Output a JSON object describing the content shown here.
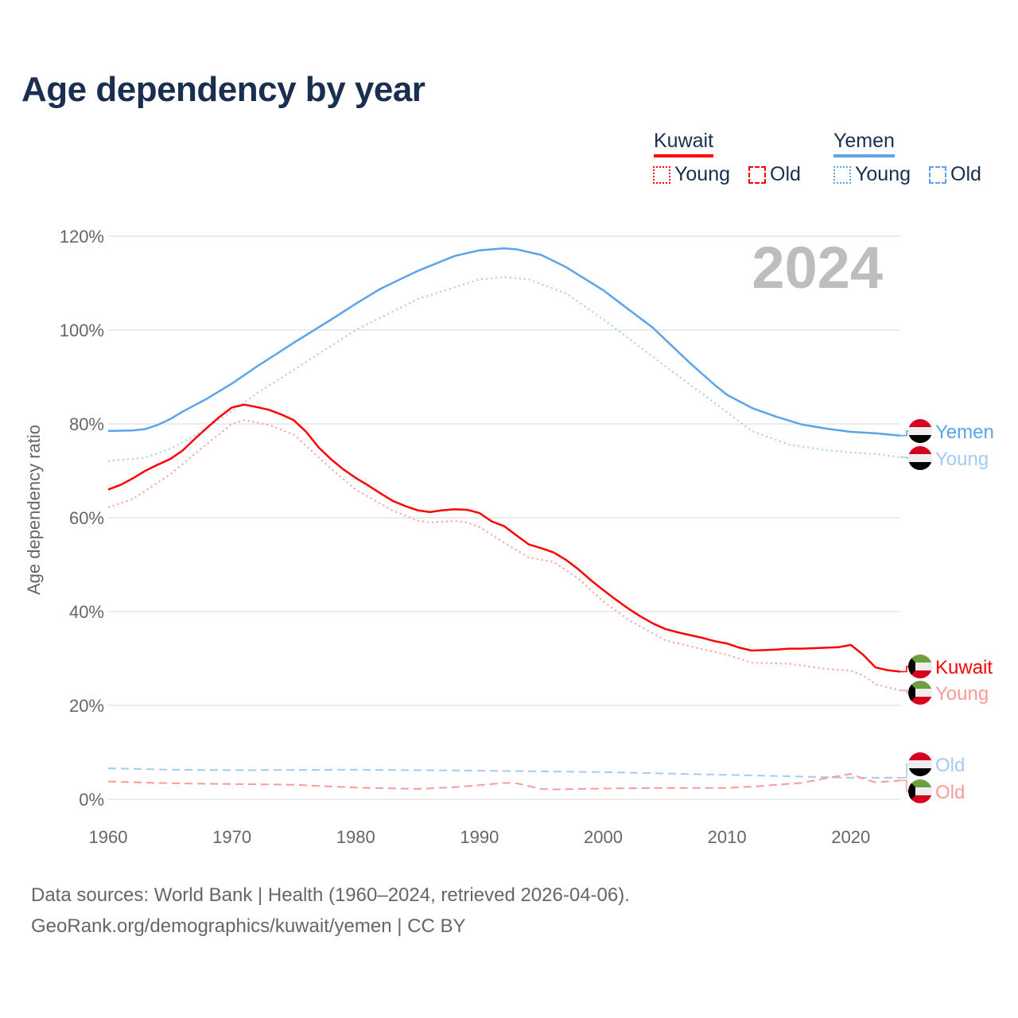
{
  "chart_data": {
    "type": "line",
    "title": "Age dependency by year",
    "ylabel": "Age dependency ratio",
    "xlabel": "",
    "year_watermark": "2024",
    "xlim": [
      1960,
      2024
    ],
    "ylim": [
      0,
      120
    ],
    "x_ticks": [
      "1960",
      "1970",
      "1980",
      "1990",
      "2000",
      "2010",
      "2020"
    ],
    "y_ticks": [
      "0%",
      "20%",
      "40%",
      "60%",
      "80%",
      "100%",
      "120%"
    ],
    "grid": true,
    "legend": {
      "placement": "top-right",
      "groups": [
        {
          "country": "Kuwait",
          "items": [
            "Young",
            "Old"
          ]
        },
        {
          "country": "Yemen",
          "items": [
            "Young",
            "Old"
          ]
        }
      ]
    },
    "colors": {
      "kuwait": "#ff0000",
      "kuwait_light": "#ff9999",
      "yemen": "#5ca4ea",
      "yemen_light": "#a3cbf3"
    },
    "series": [
      {
        "name": "Yemen",
        "country": "Yemen",
        "kind": "total",
        "end_label": "Yemen",
        "points": [
          [
            1960,
            78.5
          ],
          [
            1962,
            78.6
          ],
          [
            1963,
            78.9
          ],
          [
            1964,
            79.8
          ],
          [
            1965,
            81
          ],
          [
            1966,
            82.6
          ],
          [
            1968,
            85.4
          ],
          [
            1970,
            88.6
          ],
          [
            1972,
            92.2
          ],
          [
            1975,
            97.3
          ],
          [
            1978,
            102.2
          ],
          [
            1980,
            105.6
          ],
          [
            1982,
            108.8
          ],
          [
            1985,
            112.6
          ],
          [
            1988,
            115.8
          ],
          [
            1990,
            117
          ],
          [
            1992,
            117.4
          ],
          [
            1993,
            117.2
          ],
          [
            1995,
            116
          ],
          [
            1997,
            113.4
          ],
          [
            2000,
            108.5
          ],
          [
            2002,
            104.5
          ],
          [
            2004,
            100.5
          ],
          [
            2005,
            98
          ],
          [
            2007,
            93
          ],
          [
            2009,
            88.3
          ],
          [
            2010,
            86.2
          ],
          [
            2012,
            83.4
          ],
          [
            2014,
            81.5
          ],
          [
            2016,
            79.9
          ],
          [
            2018,
            79
          ],
          [
            2020,
            78.3
          ],
          [
            2022,
            78
          ],
          [
            2024,
            77.5
          ]
        ]
      },
      {
        "name": "Yemen Young",
        "country": "Yemen",
        "kind": "young",
        "end_label": "Young",
        "points": [
          [
            1960,
            72.1
          ],
          [
            1963,
            72.8
          ],
          [
            1965,
            74.7
          ],
          [
            1967,
            77.5
          ],
          [
            1970,
            82.7
          ],
          [
            1972,
            86.5
          ],
          [
            1975,
            91.5
          ],
          [
            1980,
            100
          ],
          [
            1985,
            106.6
          ],
          [
            1990,
            110.8
          ],
          [
            1992,
            111.3
          ],
          [
            1994,
            110.8
          ],
          [
            1997,
            107.8
          ],
          [
            2000,
            102.3
          ],
          [
            2005,
            92.3
          ],
          [
            2010,
            82.5
          ],
          [
            2012,
            78.5
          ],
          [
            2015,
            75.6
          ],
          [
            2018,
            74.4
          ],
          [
            2020,
            73.9
          ],
          [
            2022,
            73.6
          ],
          [
            2024,
            72.9
          ]
        ]
      },
      {
        "name": "Yemen Old",
        "country": "Yemen",
        "kind": "old",
        "end_label": "Old",
        "points": [
          [
            1960,
            6.6
          ],
          [
            1965,
            6.3
          ],
          [
            1970,
            6.2
          ],
          [
            1980,
            6.3
          ],
          [
            1990,
            6.1
          ],
          [
            2000,
            5.8
          ],
          [
            2010,
            5.2
          ],
          [
            2020,
            4.6
          ],
          [
            2024,
            4.6
          ]
        ]
      },
      {
        "name": "Kuwait",
        "country": "Kuwait",
        "kind": "total",
        "end_label": "Kuwait",
        "points": [
          [
            1960,
            66
          ],
          [
            1961,
            67
          ],
          [
            1962,
            68.4
          ],
          [
            1963,
            70
          ],
          [
            1964,
            71.3
          ],
          [
            1965,
            72.5
          ],
          [
            1966,
            74.3
          ],
          [
            1967,
            76.8
          ],
          [
            1968,
            79.2
          ],
          [
            1969,
            81.5
          ],
          [
            1970,
            83.5
          ],
          [
            1971,
            84.1
          ],
          [
            1972,
            83.6
          ],
          [
            1973,
            83
          ],
          [
            1974,
            82
          ],
          [
            1975,
            80.8
          ],
          [
            1976,
            78.3
          ],
          [
            1977,
            75
          ],
          [
            1978,
            72.5
          ],
          [
            1979,
            70.3
          ],
          [
            1980,
            68.5
          ],
          [
            1981,
            66.9
          ],
          [
            1982,
            65.2
          ],
          [
            1983,
            63.6
          ],
          [
            1984,
            62.5
          ],
          [
            1985,
            61.6
          ],
          [
            1986,
            61.2
          ],
          [
            1987,
            61.6
          ],
          [
            1988,
            61.8
          ],
          [
            1989,
            61.7
          ],
          [
            1990,
            61
          ],
          [
            1991,
            59.2
          ],
          [
            1992,
            58.2
          ],
          [
            1993,
            56.2
          ],
          [
            1994,
            54.3
          ],
          [
            1995,
            53.5
          ],
          [
            1996,
            52.6
          ],
          [
            1997,
            51
          ],
          [
            1998,
            49
          ],
          [
            1999,
            46.7
          ],
          [
            2000,
            44.6
          ],
          [
            2001,
            42.6
          ],
          [
            2002,
            40.7
          ],
          [
            2003,
            39
          ],
          [
            2004,
            37.5
          ],
          [
            2005,
            36.3
          ],
          [
            2006,
            35.6
          ],
          [
            2007,
            35
          ],
          [
            2008,
            34.4
          ],
          [
            2009,
            33.7
          ],
          [
            2010,
            33.2
          ],
          [
            2011,
            32.3
          ],
          [
            2012,
            31.7
          ],
          [
            2013,
            31.8
          ],
          [
            2014,
            31.9
          ],
          [
            2015,
            32.1
          ],
          [
            2016,
            32.1
          ],
          [
            2017,
            32.2
          ],
          [
            2018,
            32.3
          ],
          [
            2019,
            32.4
          ],
          [
            2020,
            32.9
          ],
          [
            2021,
            30.8
          ],
          [
            2022,
            28.1
          ],
          [
            2023,
            27.5
          ],
          [
            2024,
            27.2
          ]
        ]
      },
      {
        "name": "Kuwait Young",
        "country": "Kuwait",
        "kind": "young",
        "end_label": "Young",
        "points": [
          [
            1960,
            62.2
          ],
          [
            1962,
            64
          ],
          [
            1965,
            69.2
          ],
          [
            1968,
            75.8
          ],
          [
            1970,
            80
          ],
          [
            1971,
            80.8
          ],
          [
            1973,
            79.8
          ],
          [
            1975,
            77.7
          ],
          [
            1978,
            70.5
          ],
          [
            1980,
            66
          ],
          [
            1983,
            61.5
          ],
          [
            1985,
            59.4
          ],
          [
            1986,
            59
          ],
          [
            1988,
            59.3
          ],
          [
            1989,
            59
          ],
          [
            1990,
            58
          ],
          [
            1992,
            54.7
          ],
          [
            1994,
            51.5
          ],
          [
            1996,
            50.6
          ],
          [
            1998,
            47
          ],
          [
            2000,
            42.2
          ],
          [
            2002,
            38.3
          ],
          [
            2005,
            33.9
          ],
          [
            2008,
            32
          ],
          [
            2010,
            30.8
          ],
          [
            2012,
            29.1
          ],
          [
            2015,
            28.9
          ],
          [
            2018,
            27.8
          ],
          [
            2020,
            27.4
          ],
          [
            2021,
            26.4
          ],
          [
            2022,
            24.5
          ],
          [
            2024,
            23.2
          ]
        ]
      },
      {
        "name": "Kuwait Old",
        "country": "Kuwait",
        "kind": "old",
        "end_label": "Old",
        "points": [
          [
            1960,
            3.8
          ],
          [
            1965,
            3.4
          ],
          [
            1975,
            3.1
          ],
          [
            1980,
            2.5
          ],
          [
            1985,
            2.2
          ],
          [
            1988,
            2.6
          ],
          [
            1990,
            3
          ],
          [
            1992,
            3.5
          ],
          [
            1993,
            3.4
          ],
          [
            1995,
            2.2
          ],
          [
            1996,
            2.1
          ],
          [
            2000,
            2.3
          ],
          [
            2005,
            2.4
          ],
          [
            2010,
            2.4
          ],
          [
            2012,
            2.7
          ],
          [
            2016,
            3.5
          ],
          [
            2018,
            4.5
          ],
          [
            2020,
            5.4
          ],
          [
            2021,
            4.4
          ],
          [
            2022,
            3.6
          ],
          [
            2024,
            4
          ]
        ]
      }
    ]
  },
  "footer": {
    "line1": "Data sources: World Bank | Health (1960–2024, retrieved 2026-04-06).",
    "line2": "GeoRank.org/demographics/kuwait/yemen | CC BY"
  }
}
